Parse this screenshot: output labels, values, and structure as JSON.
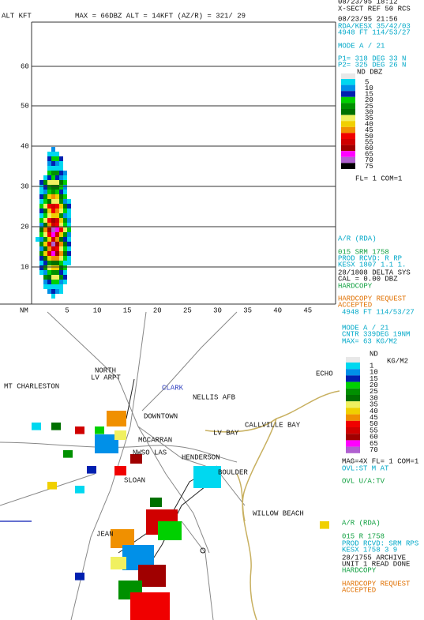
{
  "header": {
    "axis_title": "ALT KFT",
    "status": "MAX =  66DBZ   ALT = 14KFT   (AZ/R) = 321/ 29"
  },
  "cross_section": {
    "yticks": [
      "10",
      "20",
      "30",
      "40",
      "50",
      "60"
    ],
    "x_label": "NM",
    "xticks": [
      "5",
      "10",
      "15",
      "20",
      "25",
      "30",
      "35",
      "40",
      "45"
    ]
  },
  "top_panel": {
    "lines": [
      "08/23/95 18:12",
      "X-SECT REF 50 RCS",
      "08/23/95 21:56",
      "RDA/KESX 35/42/03",
      "4948 FT 114/53/27",
      "MODE A /   21",
      "P1= 318 DEG  33 N",
      "P2= 325 DEG  26 N",
      "FL= 1 COM=1",
      "A/R (RDA)",
      "015 SRM 1758",
      "PROD RCVD: R   RP",
      "KESX 1807 1.1  1.",
      "28/1808 DELTA SYS",
      "CAL =   0.00 DBZ",
      "HARDCOPY",
      "HARDCOPY REQUEST",
      "ACCEPTED"
    ],
    "legend_title": "ND  DBZ",
    "legend": [
      "5",
      "10",
      "15",
      "20",
      "25",
      "30",
      "35",
      "40",
      "45",
      "50",
      "55",
      "60",
      "65",
      "70",
      "75"
    ]
  },
  "bottom_panel": {
    "lines": [
      "4948 FT 114/53/27",
      "MODE A /   21",
      "CNTR 339DEG   19NM",
      "MAX= 63 KG/M2",
      "MAG=4X FL= 1 COM=1",
      "OVL:ST  M AT",
      "OVL U/A:TV",
      "A/R (RDA)",
      "015 R    1758",
      "PROD RCVD: SRM RPS",
      "KESX 1758    3 9",
      "28/1755 ARCHIVE",
      "UNIT 1 READ DONE",
      "HARDCOPY",
      "HARDCOPY REQUEST",
      "ACCEPTED"
    ],
    "legend_title": "ND",
    "legend_unit": "KG/M2",
    "legend": [
      "1",
      "10",
      "15",
      "20",
      "25",
      "30",
      "35",
      "40",
      "45",
      "50",
      "55",
      "60",
      "65",
      "70"
    ]
  },
  "map": {
    "places": [
      "MT CHARLESTON",
      "NORTH",
      "LV ARPT",
      "CLARK",
      "NELLIS AFB",
      "DOWNTOWN",
      "MCCARRAN",
      "NWSO LAS",
      "LV BAY",
      "CALLVILLE BAY",
      "ECHO",
      "HENDERSON",
      "BOULDER",
      "SLOAN",
      "WILLOW BEACH",
      "JEAN"
    ]
  }
}
